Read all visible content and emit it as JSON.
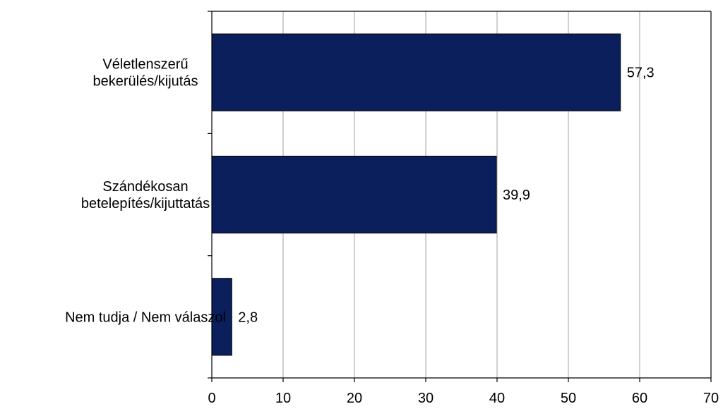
{
  "chart_data": {
    "type": "bar",
    "orientation": "horizontal",
    "categories": [
      [
        "Véletlenszerű",
        "bekerülés/kijutás"
      ],
      [
        "Szándékosan",
        "betelepítés/kijuttatás"
      ],
      [
        "Nem tudja / Nem válaszol"
      ]
    ],
    "values": [
      57.3,
      39.9,
      2.8
    ],
    "value_labels": [
      "57,3",
      "39,9",
      "2,8"
    ],
    "xlim": [
      0,
      70
    ],
    "x_ticks": [
      0,
      10,
      20,
      30,
      40,
      50,
      60,
      70
    ],
    "x_tick_labels": [
      "0",
      "10",
      "20",
      "30",
      "40",
      "50",
      "60",
      "70"
    ],
    "grid": "vertical",
    "legend": "none",
    "bar_color": "#0b1f5c",
    "gridline_color": "#a0a0a0"
  }
}
